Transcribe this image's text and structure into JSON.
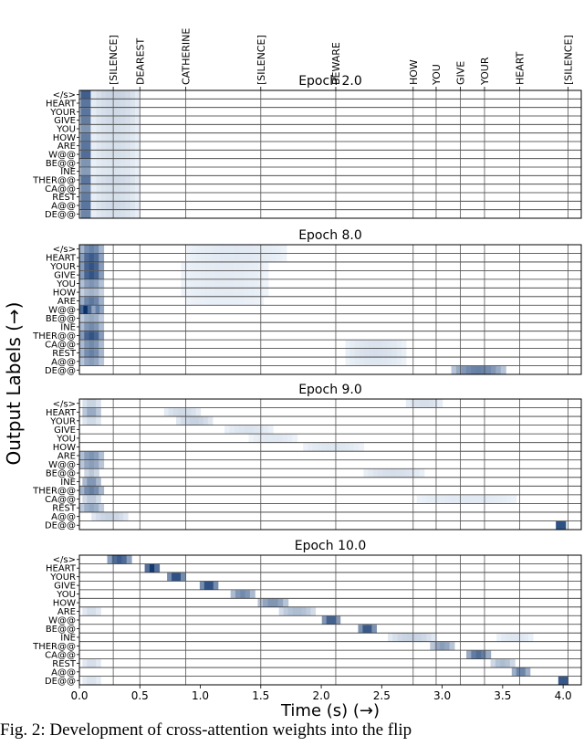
{
  "chart_data": {
    "type": "heatmap",
    "ylabel": "Output Labels (→)",
    "xlabel": "Time (s) (→)",
    "x_ticks": [
      "0.0",
      "0.5",
      "1.0",
      "1.5",
      "2.0",
      "2.5",
      "3.0",
      "3.5",
      "4.0"
    ],
    "xlim": [
      0,
      4.15
    ],
    "output_labels": [
      "</s>",
      "HEART",
      "YOUR",
      "GIVE",
      "YOU",
      "HOW",
      "ARE",
      "W@@",
      "BE@@",
      "INE",
      "THER@@",
      "CA@@",
      "REST",
      "A@@",
      "DE@@"
    ],
    "word_segments": [
      {
        "label": "[SILENCE]",
        "start": 0.28
      },
      {
        "label": "DEAREST",
        "start": 0.5
      },
      {
        "label": "CATHERINE",
        "start": 0.88
      },
      {
        "label": "[SILENCE]",
        "start": 1.5
      },
      {
        "label": "BEWARE",
        "start": 2.12
      },
      {
        "label": "HOW",
        "start": 2.76
      },
      {
        "label": "YOU",
        "start": 2.95
      },
      {
        "label": "GIVE",
        "start": 3.15
      },
      {
        "label": "YOUR",
        "start": 3.35
      },
      {
        "label": "HEART",
        "start": 3.64
      },
      {
        "label": "[SILENCE]",
        "start": 4.04
      }
    ],
    "panels": [
      {
        "title": "Epoch 2.0",
        "show_word_labels": true,
        "attention": [
          {
            "row": 0,
            "center": 0.05,
            "width": 0.08,
            "weight": 0.9
          },
          {
            "row": 0,
            "center": 0.3,
            "width": 0.4,
            "weight": 0.15
          },
          {
            "row": 1,
            "center": 0.05,
            "width": 0.08,
            "weight": 0.75
          },
          {
            "row": 1,
            "center": 0.3,
            "width": 0.4,
            "weight": 0.12
          },
          {
            "row": 2,
            "center": 0.05,
            "width": 0.08,
            "weight": 0.75
          },
          {
            "row": 2,
            "center": 0.3,
            "width": 0.4,
            "weight": 0.12
          },
          {
            "row": 3,
            "center": 0.05,
            "width": 0.08,
            "weight": 0.7
          },
          {
            "row": 3,
            "center": 0.3,
            "width": 0.4,
            "weight": 0.12
          },
          {
            "row": 4,
            "center": 0.05,
            "width": 0.08,
            "weight": 0.55
          },
          {
            "row": 4,
            "center": 0.3,
            "width": 0.4,
            "weight": 0.1
          },
          {
            "row": 5,
            "center": 0.05,
            "width": 0.08,
            "weight": 0.7
          },
          {
            "row": 5,
            "center": 0.3,
            "width": 0.4,
            "weight": 0.1
          },
          {
            "row": 6,
            "center": 0.05,
            "width": 0.08,
            "weight": 0.75
          },
          {
            "row": 6,
            "center": 0.3,
            "width": 0.4,
            "weight": 0.1
          },
          {
            "row": 7,
            "center": 0.05,
            "width": 0.08,
            "weight": 0.8
          },
          {
            "row": 7,
            "center": 0.3,
            "width": 0.4,
            "weight": 0.1
          },
          {
            "row": 8,
            "center": 0.05,
            "width": 0.08,
            "weight": 0.55
          },
          {
            "row": 8,
            "center": 0.3,
            "width": 0.4,
            "weight": 0.08
          },
          {
            "row": 9,
            "center": 0.05,
            "width": 0.08,
            "weight": 0.5
          },
          {
            "row": 9,
            "center": 0.3,
            "width": 0.4,
            "weight": 0.08
          },
          {
            "row": 10,
            "center": 0.05,
            "width": 0.08,
            "weight": 0.75
          },
          {
            "row": 10,
            "center": 0.3,
            "width": 0.4,
            "weight": 0.12
          },
          {
            "row": 11,
            "center": 0.05,
            "width": 0.08,
            "weight": 0.6
          },
          {
            "row": 11,
            "center": 0.3,
            "width": 0.4,
            "weight": 0.1
          },
          {
            "row": 12,
            "center": 0.05,
            "width": 0.08,
            "weight": 0.7
          },
          {
            "row": 12,
            "center": 0.3,
            "width": 0.4,
            "weight": 0.1
          },
          {
            "row": 13,
            "center": 0.05,
            "width": 0.08,
            "weight": 0.75
          },
          {
            "row": 13,
            "center": 0.3,
            "width": 0.4,
            "weight": 0.12
          },
          {
            "row": 14,
            "center": 0.05,
            "width": 0.08,
            "weight": 0.65
          },
          {
            "row": 14,
            "center": 0.3,
            "width": 0.4,
            "weight": 0.1
          }
        ]
      },
      {
        "title": "Epoch 8.0",
        "show_word_labels": false,
        "attention": [
          {
            "row": 0,
            "center": 0.1,
            "width": 0.2,
            "weight": 0.55
          },
          {
            "row": 0,
            "center": 1.3,
            "width": 0.9,
            "weight": 0.06
          },
          {
            "row": 1,
            "center": 0.1,
            "width": 0.2,
            "weight": 0.75
          },
          {
            "row": 1,
            "center": 1.3,
            "width": 0.9,
            "weight": 0.06
          },
          {
            "row": 2,
            "center": 0.1,
            "width": 0.2,
            "weight": 0.8
          },
          {
            "row": 2,
            "center": 1.2,
            "width": 0.8,
            "weight": 0.05
          },
          {
            "row": 3,
            "center": 0.1,
            "width": 0.2,
            "weight": 0.8
          },
          {
            "row": 3,
            "center": 1.2,
            "width": 0.8,
            "weight": 0.05
          },
          {
            "row": 4,
            "center": 0.1,
            "width": 0.2,
            "weight": 0.45
          },
          {
            "row": 4,
            "center": 1.2,
            "width": 0.8,
            "weight": 0.05
          },
          {
            "row": 5,
            "center": 0.1,
            "width": 0.2,
            "weight": 0.3
          },
          {
            "row": 5,
            "center": 1.2,
            "width": 0.8,
            "weight": 0.05
          },
          {
            "row": 6,
            "center": 0.1,
            "width": 0.2,
            "weight": 0.6
          },
          {
            "row": 6,
            "center": 1.2,
            "width": 0.8,
            "weight": 0.04
          },
          {
            "row": 7,
            "center": 0.05,
            "width": 0.1,
            "weight": 1.0
          },
          {
            "row": 7,
            "center": 0.15,
            "width": 0.1,
            "weight": 0.55
          },
          {
            "row": 8,
            "center": 0.1,
            "width": 0.2,
            "weight": 0.35
          },
          {
            "row": 9,
            "center": 0.1,
            "width": 0.2,
            "weight": 0.5
          },
          {
            "row": 10,
            "center": 0.1,
            "width": 0.2,
            "weight": 0.8
          },
          {
            "row": 11,
            "center": 0.1,
            "width": 0.2,
            "weight": 0.5
          },
          {
            "row": 11,
            "center": 2.45,
            "width": 0.5,
            "weight": 0.08
          },
          {
            "row": 12,
            "center": 0.1,
            "width": 0.2,
            "weight": 0.55
          },
          {
            "row": 12,
            "center": 2.45,
            "width": 0.5,
            "weight": 0.1
          },
          {
            "row": 13,
            "center": 0.1,
            "width": 0.2,
            "weight": 0.4
          },
          {
            "row": 13,
            "center": 2.45,
            "width": 0.5,
            "weight": 0.07
          },
          {
            "row": 14,
            "center": 3.3,
            "width": 0.45,
            "weight": 0.55
          }
        ]
      },
      {
        "title": "Epoch 9.0",
        "show_word_labels": false,
        "attention": [
          {
            "row": 0,
            "center": 0.1,
            "width": 0.15,
            "weight": 0.15
          },
          {
            "row": 0,
            "center": 2.85,
            "width": 0.3,
            "weight": 0.1
          },
          {
            "row": 1,
            "center": 0.1,
            "width": 0.15,
            "weight": 0.35
          },
          {
            "row": 1,
            "center": 0.85,
            "width": 0.3,
            "weight": 0.12
          },
          {
            "row": 2,
            "center": 0.1,
            "width": 0.15,
            "weight": 0.12
          },
          {
            "row": 2,
            "center": 0.95,
            "width": 0.3,
            "weight": 0.15
          },
          {
            "row": 3,
            "center": 1.4,
            "width": 0.4,
            "weight": 0.08
          },
          {
            "row": 4,
            "center": 1.6,
            "width": 0.4,
            "weight": 0.06
          },
          {
            "row": 5,
            "center": 2.1,
            "width": 0.5,
            "weight": 0.07
          },
          {
            "row": 6,
            "center": 0.1,
            "width": 0.2,
            "weight": 0.45
          },
          {
            "row": 7,
            "center": 0.1,
            "width": 0.2,
            "weight": 0.4
          },
          {
            "row": 8,
            "center": 0.1,
            "width": 0.12,
            "weight": 0.2
          },
          {
            "row": 8,
            "center": 2.6,
            "width": 0.5,
            "weight": 0.1
          },
          {
            "row": 9,
            "center": 0.1,
            "width": 0.15,
            "weight": 0.45
          },
          {
            "row": 10,
            "center": 0.1,
            "width": 0.2,
            "weight": 0.55
          },
          {
            "row": 11,
            "center": 0.1,
            "width": 0.15,
            "weight": 0.2
          },
          {
            "row": 11,
            "center": 3.2,
            "width": 0.9,
            "weight": 0.06
          },
          {
            "row": 12,
            "center": 0.1,
            "width": 0.2,
            "weight": 0.35
          },
          {
            "row": 13,
            "center": 0.25,
            "width": 0.3,
            "weight": 0.15
          },
          {
            "row": 14,
            "center": 3.98,
            "width": 0.08,
            "weight": 1.0
          }
        ]
      },
      {
        "title": "Epoch 10.0",
        "show_word_labels": false,
        "attention": [
          {
            "row": 0,
            "center": 0.33,
            "width": 0.2,
            "weight": 0.75
          },
          {
            "row": 1,
            "center": 0.6,
            "width": 0.12,
            "weight": 0.95
          },
          {
            "row": 2,
            "center": 0.8,
            "width": 0.15,
            "weight": 0.85
          },
          {
            "row": 3,
            "center": 1.07,
            "width": 0.15,
            "weight": 0.85
          },
          {
            "row": 4,
            "center": 1.35,
            "width": 0.2,
            "weight": 0.5
          },
          {
            "row": 5,
            "center": 1.6,
            "width": 0.25,
            "weight": 0.45
          },
          {
            "row": 6,
            "center": 0.1,
            "width": 0.15,
            "weight": 0.1
          },
          {
            "row": 6,
            "center": 1.8,
            "width": 0.3,
            "weight": 0.25
          },
          {
            "row": 7,
            "center": 2.08,
            "width": 0.15,
            "weight": 0.75
          },
          {
            "row": 8,
            "center": 2.38,
            "width": 0.15,
            "weight": 0.8
          },
          {
            "row": 9,
            "center": 2.75,
            "width": 0.4,
            "weight": 0.15
          },
          {
            "row": 9,
            "center": 3.6,
            "width": 0.3,
            "weight": 0.07
          },
          {
            "row": 10,
            "center": 3.0,
            "width": 0.2,
            "weight": 0.4
          },
          {
            "row": 11,
            "center": 3.3,
            "width": 0.2,
            "weight": 0.65
          },
          {
            "row": 12,
            "center": 0.1,
            "width": 0.15,
            "weight": 0.1
          },
          {
            "row": 12,
            "center": 3.5,
            "width": 0.2,
            "weight": 0.25
          },
          {
            "row": 13,
            "center": 3.65,
            "width": 0.15,
            "weight": 0.55
          },
          {
            "row": 14,
            "center": 4.0,
            "width": 0.08,
            "weight": 0.95
          },
          {
            "row": 14,
            "center": 0.1,
            "width": 0.15,
            "weight": 0.08
          }
        ]
      }
    ]
  },
  "caption": "Fig. 2: Development of cross-attention weights into the flip"
}
